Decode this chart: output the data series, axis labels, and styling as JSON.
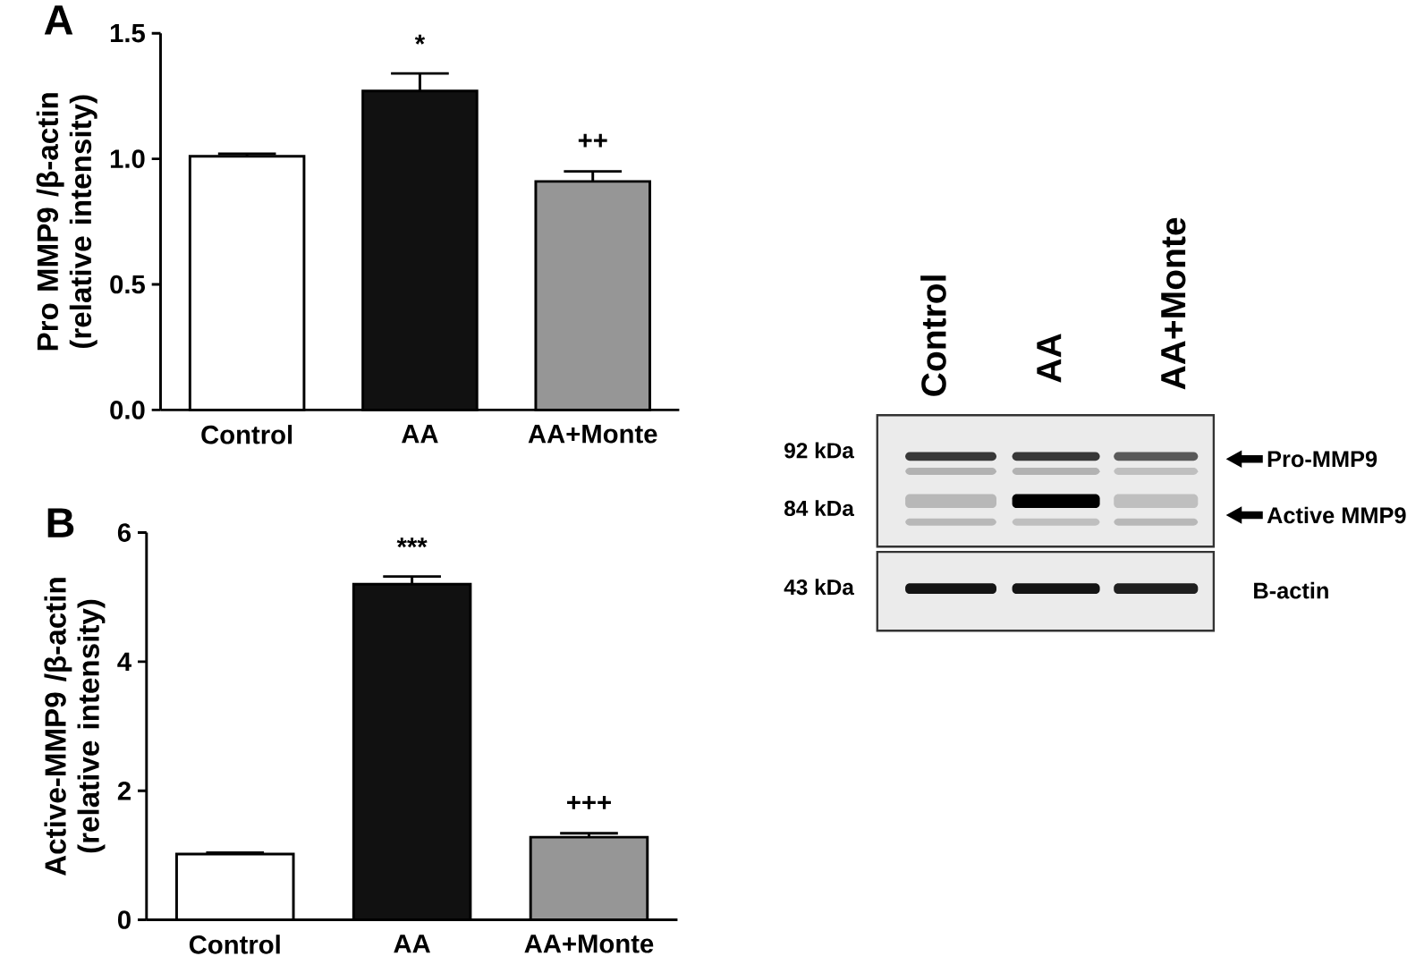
{
  "chart_data": [
    {
      "type": "bar",
      "title": "A",
      "categories": [
        "Control",
        "AA",
        "AA+Monte"
      ],
      "values": [
        1.01,
        1.27,
        0.91
      ],
      "errors": [
        0.01,
        0.07,
        0.04
      ],
      "colors": [
        "#ffffff",
        "#111111",
        "#969696"
      ],
      "ylabel": "Pro MMP9 /β-actin (relative intensity)",
      "ylim": [
        0,
        1.5
      ],
      "yticks": [
        {
          "value": 0,
          "label": "0.0"
        },
        {
          "value": 0.5,
          "label": "0.5"
        },
        {
          "value": 1.0,
          "label": "1.0"
        },
        {
          "value": 1.5,
          "label": "1.5"
        }
      ],
      "annotations": [
        {
          "text": "*",
          "x": "AA",
          "y": 1.27
        },
        {
          "text": "++",
          "x": "AA+Monte",
          "y": 0.91
        }
      ]
    },
    {
      "type": "bar",
      "title": "B",
      "categories": [
        "Control",
        "AA",
        "AA+Monte"
      ],
      "values": [
        1.02,
        5.2,
        1.28
      ],
      "errors": [
        0.02,
        0.12,
        0.06
      ],
      "colors": [
        "#ffffff",
        "#111111",
        "#969696"
      ],
      "ylabel": "Active-MMP9 /β-actin (relative intensity)",
      "ylim": [
        0,
        6
      ],
      "yticks": [
        0,
        2,
        4,
        6
      ],
      "annotations": [
        {
          "text": "***",
          "x": "AA",
          "y": 5.2
        },
        {
          "text": "+++",
          "x": "AA+Monte",
          "y": 1.28
        }
      ]
    },
    {
      "type": "other",
      "annotations": [
        "Control",
        "AA",
        "AA+Monte",
        "92 kDa",
        "84 kDa",
        "43 kDa",
        "Pro-MMP9",
        "Active MMP9",
        "B-actin"
      ]
    }
  ]
}
